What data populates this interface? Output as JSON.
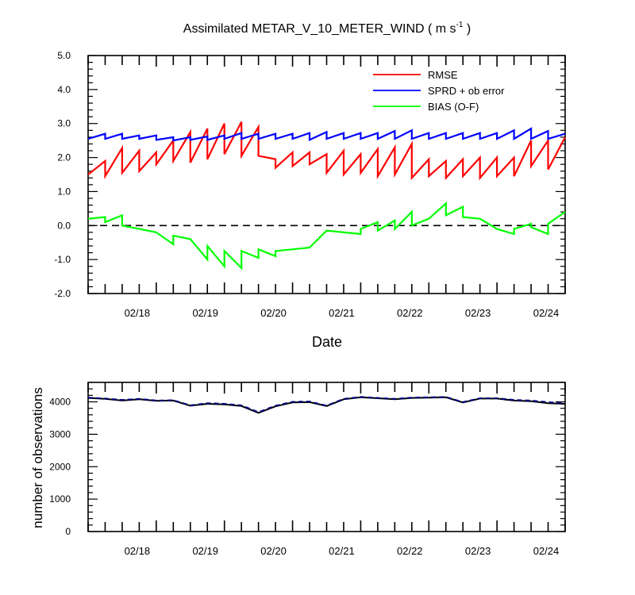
{
  "chart_data": [
    {
      "type": "line",
      "title": "Assimilated METAR_V_10_METER_WIND ( m s",
      "title_sup": "-1",
      "title_end": " )",
      "xlabel": "Date",
      "ylabel": "",
      "xlim": [
        0,
        84
      ],
      "ylim": [
        -2.0,
        5.0
      ],
      "yticks": [
        "-2.0",
        "-1.0",
        "0.0",
        "1.0",
        "2.0",
        "3.0",
        "4.0",
        "5.0"
      ],
      "xticks": [
        {
          "label": "02/18",
          "x": 12
        },
        {
          "label": "02/19",
          "x": 24
        },
        {
          "label": "02/20",
          "x": 36
        },
        {
          "label": "02/21",
          "x": 48
        },
        {
          "label": "02/22",
          "x": 60
        },
        {
          "label": "02/23",
          "x": 72
        },
        {
          "label": "02/24",
          "x": 84
        }
      ],
      "zero_line": true,
      "legend_position": "top-right",
      "series": [
        {
          "name": "RMSE",
          "color": "#ff0000",
          "points": [
            [
              0,
              1.5
            ],
            [
              3,
              1.9
            ],
            [
              3,
              1.45
            ],
            [
              6,
              2.28
            ],
            [
              6,
              1.55
            ],
            [
              9,
              2.2
            ],
            [
              9,
              1.6
            ],
            [
              12,
              2.15
            ],
            [
              12,
              1.8
            ],
            [
              15,
              2.5
            ],
            [
              15,
              1.9
            ],
            [
              18,
              2.75
            ],
            [
              18,
              1.85
            ],
            [
              21,
              2.85
            ],
            [
              21,
              1.95
            ],
            [
              24,
              3.0
            ],
            [
              24,
              2.1
            ],
            [
              27,
              3.05
            ],
            [
              27,
              2.05
            ],
            [
              30,
              2.9
            ],
            [
              30,
              2.05
            ],
            [
              33,
              1.95
            ],
            [
              33,
              1.7
            ],
            [
              36,
              2.15
            ],
            [
              36,
              1.75
            ],
            [
              39,
              2.15
            ],
            [
              39,
              1.8
            ],
            [
              42,
              2.1
            ],
            [
              42,
              1.55
            ],
            [
              45,
              2.2
            ],
            [
              45,
              1.5
            ],
            [
              48,
              2.1
            ],
            [
              48,
              1.55
            ],
            [
              51,
              2.25
            ],
            [
              51,
              1.45
            ],
            [
              54,
              2.3
            ],
            [
              54,
              1.5
            ],
            [
              57,
              2.4
            ],
            [
              57,
              1.4
            ],
            [
              60,
              1.95
            ],
            [
              60,
              1.45
            ],
            [
              63,
              1.9
            ],
            [
              63,
              1.4
            ],
            [
              66,
              1.95
            ],
            [
              66,
              1.45
            ],
            [
              69,
              2.0
            ],
            [
              69,
              1.4
            ],
            [
              72,
              2.0
            ],
            [
              72,
              1.45
            ],
            [
              75,
              2.0
            ],
            [
              75,
              1.45
            ],
            [
              78,
              2.5
            ],
            [
              78,
              1.75
            ],
            [
              81,
              2.5
            ],
            [
              81,
              1.65
            ],
            [
              84,
              2.6
            ]
          ]
        },
        {
          "name": "SPRD + ob error",
          "color": "#0000ff",
          "points": [
            [
              0,
              2.55
            ],
            [
              3,
              2.7
            ],
            [
              3,
              2.55
            ],
            [
              6,
              2.7
            ],
            [
              6,
              2.55
            ],
            [
              9,
              2.65
            ],
            [
              9,
              2.55
            ],
            [
              12,
              2.65
            ],
            [
              12,
              2.52
            ],
            [
              15,
              2.6
            ],
            [
              15,
              2.5
            ],
            [
              18,
              2.6
            ],
            [
              18,
              2.52
            ],
            [
              21,
              2.62
            ],
            [
              21,
              2.52
            ],
            [
              24,
              2.65
            ],
            [
              24,
              2.55
            ],
            [
              27,
              2.72
            ],
            [
              27,
              2.55
            ],
            [
              30,
              2.7
            ],
            [
              30,
              2.55
            ],
            [
              33,
              2.7
            ],
            [
              33,
              2.55
            ],
            [
              36,
              2.7
            ],
            [
              36,
              2.55
            ],
            [
              39,
              2.72
            ],
            [
              39,
              2.52
            ],
            [
              42,
              2.75
            ],
            [
              42,
              2.55
            ],
            [
              45,
              2.72
            ],
            [
              45,
              2.55
            ],
            [
              48,
              2.72
            ],
            [
              48,
              2.55
            ],
            [
              51,
              2.72
            ],
            [
              51,
              2.55
            ],
            [
              54,
              2.78
            ],
            [
              54,
              2.55
            ],
            [
              57,
              2.8
            ],
            [
              57,
              2.55
            ],
            [
              60,
              2.72
            ],
            [
              60,
              2.55
            ],
            [
              63,
              2.72
            ],
            [
              63,
              2.55
            ],
            [
              66,
              2.72
            ],
            [
              66,
              2.55
            ],
            [
              69,
              2.72
            ],
            [
              69,
              2.55
            ],
            [
              72,
              2.72
            ],
            [
              72,
              2.55
            ],
            [
              75,
              2.8
            ],
            [
              75,
              2.55
            ],
            [
              78,
              2.85
            ],
            [
              78,
              2.55
            ],
            [
              81,
              2.78
            ],
            [
              81,
              2.55
            ],
            [
              84,
              2.7
            ]
          ]
        },
        {
          "name": "BIAS (O-F)",
          "color": "#00ff00",
          "points": [
            [
              0,
              0.2
            ],
            [
              3,
              0.25
            ],
            [
              3,
              0.1
            ],
            [
              6,
              0.3
            ],
            [
              6,
              0.0
            ],
            [
              9,
              -0.1
            ],
            [
              12,
              -0.2
            ],
            [
              15,
              -0.55
            ],
            [
              15,
              -0.3
            ],
            [
              18,
              -0.4
            ],
            [
              21,
              -1.0
            ],
            [
              21,
              -0.6
            ],
            [
              24,
              -1.2
            ],
            [
              24,
              -0.75
            ],
            [
              27,
              -1.25
            ],
            [
              27,
              -0.75
            ],
            [
              30,
              -0.95
            ],
            [
              30,
              -0.7
            ],
            [
              33,
              -0.9
            ],
            [
              33,
              -0.75
            ],
            [
              36,
              -0.7
            ],
            [
              39,
              -0.65
            ],
            [
              42,
              -0.15
            ],
            [
              45,
              -0.2
            ],
            [
              45,
              -0.2
            ],
            [
              48,
              -0.25
            ],
            [
              48,
              -0.1
            ],
            [
              51,
              0.1
            ],
            [
              51,
              -0.15
            ],
            [
              54,
              0.15
            ],
            [
              54,
              -0.1
            ],
            [
              57,
              0.4
            ],
            [
              57,
              0.0
            ],
            [
              60,
              0.2
            ],
            [
              63,
              0.65
            ],
            [
              63,
              0.3
            ],
            [
              66,
              0.55
            ],
            [
              66,
              0.25
            ],
            [
              69,
              0.2
            ],
            [
              72,
              -0.1
            ],
            [
              75,
              -0.25
            ],
            [
              75,
              -0.1
            ],
            [
              78,
              0.05
            ],
            [
              78,
              -0.05
            ],
            [
              81,
              -0.25
            ],
            [
              81,
              0.05
            ],
            [
              84,
              0.4
            ]
          ]
        }
      ]
    },
    {
      "type": "line",
      "title": "",
      "xlabel": "",
      "ylabel": "number of observations",
      "xlim": [
        0,
        84
      ],
      "ylim": [
        0,
        4600
      ],
      "yticks": [
        "0",
        "1000",
        "2000",
        "3000",
        "4000"
      ],
      "xticks": [
        {
          "label": "02/18",
          "x": 12
        },
        {
          "label": "02/19",
          "x": 24
        },
        {
          "label": "02/20",
          "x": 36
        },
        {
          "label": "02/21",
          "x": 48
        },
        {
          "label": "02/22",
          "x": 60
        },
        {
          "label": "02/23",
          "x": 72
        },
        {
          "label": "02/24",
          "x": 84
        }
      ],
      "series": [
        {
          "name": "",
          "color": "#000000",
          "dash": false,
          "points": [
            [
              0,
              4120
            ],
            [
              3,
              4090
            ],
            [
              6,
              4040
            ],
            [
              9,
              4080
            ],
            [
              12,
              4030
            ],
            [
              15,
              4040
            ],
            [
              18,
              3880
            ],
            [
              21,
              3940
            ],
            [
              24,
              3920
            ],
            [
              27,
              3870
            ],
            [
              30,
              3660
            ],
            [
              33,
              3860
            ],
            [
              36,
              3980
            ],
            [
              39,
              3990
            ],
            [
              42,
              3870
            ],
            [
              45,
              4080
            ],
            [
              48,
              4140
            ],
            [
              51,
              4110
            ],
            [
              54,
              4080
            ],
            [
              57,
              4120
            ],
            [
              60,
              4130
            ],
            [
              63,
              4140
            ],
            [
              66,
              3980
            ],
            [
              69,
              4100
            ],
            [
              72,
              4100
            ],
            [
              75,
              4040
            ],
            [
              78,
              4020
            ],
            [
              81,
              3960
            ],
            [
              84,
              3940
            ]
          ]
        },
        {
          "name": "",
          "color": "#000080",
          "dash": true,
          "points": [
            [
              0,
              4130
            ],
            [
              3,
              4100
            ],
            [
              6,
              4060
            ],
            [
              9,
              4090
            ],
            [
              12,
              4040
            ],
            [
              15,
              4050
            ],
            [
              18,
              3890
            ],
            [
              21,
              3960
            ],
            [
              24,
              3940
            ],
            [
              27,
              3890
            ],
            [
              30,
              3680
            ],
            [
              33,
              3880
            ],
            [
              36,
              4000
            ],
            [
              39,
              4010
            ],
            [
              42,
              3880
            ],
            [
              45,
              4090
            ],
            [
              48,
              4150
            ],
            [
              51,
              4120
            ],
            [
              54,
              4090
            ],
            [
              57,
              4130
            ],
            [
              60,
              4140
            ],
            [
              63,
              4150
            ],
            [
              66,
              3990
            ],
            [
              69,
              4110
            ],
            [
              72,
              4110
            ],
            [
              75,
              4060
            ],
            [
              78,
              4040
            ],
            [
              81,
              3990
            ],
            [
              84,
              3960
            ]
          ]
        }
      ]
    }
  ]
}
